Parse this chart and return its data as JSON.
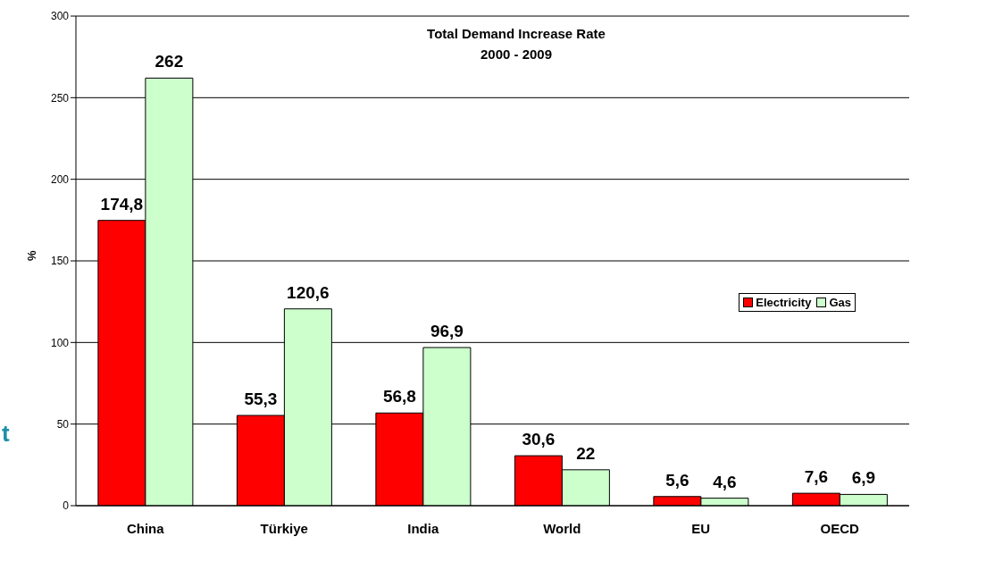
{
  "chart_data": {
    "type": "bar",
    "title": "Total Demand Increase Rate\n2000 - 2009",
    "ylabel": "%",
    "categories": [
      "China",
      "Türkiye",
      "India",
      "World",
      "EU",
      "OECD"
    ],
    "series": [
      {
        "name": "Electricity",
        "color": "#ff0000",
        "values": [
          174.8,
          55.3,
          56.8,
          30.6,
          5.6,
          7.6
        ],
        "value_labels": [
          "174,8",
          "55,3",
          "56,8",
          "30,6",
          "5,6",
          "7,6"
        ]
      },
      {
        "name": "Gas",
        "color": "#ccffcc",
        "values": [
          262,
          120.6,
          96.9,
          22,
          4.6,
          6.9
        ],
        "value_labels": [
          "262",
          "120,6",
          "96,9",
          "22",
          "4,6",
          "6,9"
        ]
      }
    ],
    "ylim": [
      0,
      300
    ],
    "yticks": [
      0,
      50,
      100,
      150,
      200,
      250,
      300
    ],
    "grid": "y",
    "legend": "right",
    "annotations": [
      "t"
    ]
  }
}
